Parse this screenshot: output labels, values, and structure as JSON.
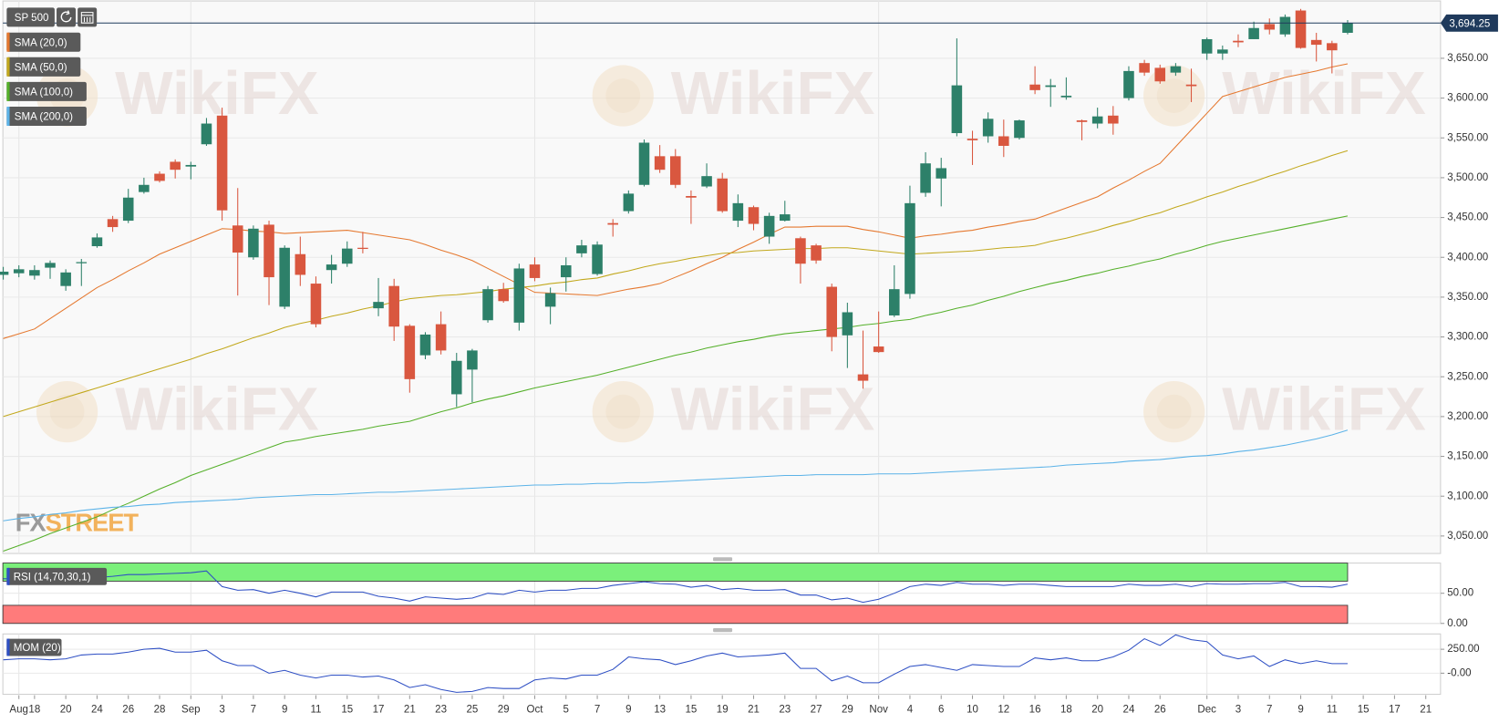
{
  "watermark": "WikiFX",
  "logo": [
    "FX",
    "STREET"
  ],
  "chart_data": [
    {
      "type": "candlestick",
      "title": "SP 500",
      "categories": [
        null,
        "Aug",
        "18",
        null,
        "20",
        null,
        "24",
        null,
        "26",
        null,
        "28",
        null,
        "Sep",
        null,
        "3",
        null,
        "7",
        null,
        "9",
        null,
        "11",
        null,
        "15",
        null,
        "17",
        null,
        "21",
        null,
        "23",
        null,
        "25",
        null,
        "29",
        null,
        "Oct",
        null,
        "5",
        null,
        "7",
        null,
        "9",
        null,
        "13",
        null,
        "15",
        null,
        "19",
        null,
        "21",
        null,
        "23",
        null,
        "27",
        null,
        "29",
        null,
        "Nov",
        null,
        "4",
        null,
        "6",
        null,
        "10",
        null,
        "12",
        null,
        "16",
        null,
        "18",
        null,
        "20",
        null,
        "24",
        null,
        "26",
        null,
        null,
        "Dec",
        null,
        "3",
        null,
        "7",
        null,
        "9",
        null,
        "11",
        null,
        "15",
        null,
        "17",
        null,
        "21"
      ],
      "open": [
        3378,
        3380,
        3377,
        3387,
        3364,
        3393,
        3414,
        3448,
        3446,
        3482,
        3505,
        3520,
        3514,
        3542,
        3578,
        3440,
        3400,
        3441,
        3338,
        3404,
        3367,
        3384,
        3392,
        3412,
        3336,
        3364,
        3314,
        3277,
        3316,
        3228,
        3259,
        3321,
        3360,
        3318,
        3391,
        3338,
        3375,
        3405,
        3379,
        3443,
        3458,
        3491,
        3527,
        3527,
        3477,
        3489,
        3499,
        3446,
        3463,
        3426,
        3446,
        3424,
        3415,
        3363,
        3302,
        3253,
        3288,
        3327,
        3354,
        3481,
        3499,
        3556,
        3549,
        3552,
        3552,
        3550,
        3617,
        3614,
        3601,
        3572,
        3568,
        3578,
        3600,
        3644,
        3638,
        3632,
        3617,
        3656,
        3656,
        3672,
        3674,
        3693,
        3680,
        3710,
        3673,
        3669,
        3682,
        null,
        null,
        null,
        null,
        null
      ],
      "high": [
        3388,
        3390,
        3390,
        3396,
        3385,
        3398,
        3430,
        3452,
        3486,
        3500,
        3508,
        3523,
        3520,
        3575,
        3588,
        3487,
        3440,
        3446,
        3415,
        3426,
        3376,
        3403,
        3420,
        3432,
        3374,
        3373,
        3316,
        3306,
        3332,
        3280,
        3285,
        3364,
        3368,
        3392,
        3400,
        3362,
        3400,
        3422,
        3420,
        3448,
        3484,
        3548,
        3541,
        3536,
        3484,
        3518,
        3506,
        3479,
        3465,
        3456,
        3471,
        3426,
        3417,
        3367,
        3343,
        3308,
        3332,
        3390,
        3490,
        3532,
        3525,
        3675,
        3559,
        3582,
        3573,
        3573,
        3640,
        3624,
        3626,
        3573,
        3588,
        3590,
        3640,
        3648,
        3642,
        3644,
        3637,
        3676,
        3666,
        3680,
        3696,
        3700,
        3705,
        3712,
        3682,
        3672,
        3698,
        null,
        null,
        null,
        null,
        null
      ],
      "low": [
        3372,
        3375,
        3372,
        3373,
        3358,
        3364,
        3412,
        3432,
        3443,
        3480,
        3494,
        3499,
        3498,
        3540,
        3446,
        3352,
        3397,
        3340,
        3335,
        3364,
        3312,
        3367,
        3388,
        3405,
        3326,
        3295,
        3230,
        3272,
        3278,
        3212,
        3218,
        3318,
        3343,
        3308,
        3370,
        3316,
        3357,
        3400,
        3377,
        3426,
        3455,
        3489,
        3506,
        3487,
        3442,
        3487,
        3456,
        3438,
        3434,
        3417,
        3445,
        3367,
        3392,
        3282,
        3261,
        3235,
        3280,
        3325,
        3348,
        3476,
        3464,
        3552,
        3516,
        3544,
        3526,
        3548,
        3605,
        3589,
        3598,
        3547,
        3562,
        3554,
        3597,
        3628,
        3618,
        3628,
        3595,
        3648,
        3648,
        3664,
        3674,
        3680,
        3677,
        3662,
        3646,
        3631,
        3680,
        null,
        null,
        null,
        null,
        null
      ],
      "close": [
        3382,
        3385,
        3384,
        3393,
        3381,
        3394,
        3425,
        3438,
        3475,
        3491,
        3496,
        3510,
        3516,
        3568,
        3459,
        3406,
        3436,
        3375,
        3412,
        3378,
        3316,
        3391,
        3411,
        3411,
        3344,
        3313,
        3247,
        3303,
        3283,
        3270,
        3283,
        3360,
        3345,
        3386,
        3374,
        3355,
        3390,
        3415,
        3416,
        3441,
        3480,
        3544,
        3510,
        3491,
        3475,
        3502,
        3458,
        3468,
        3442,
        3452,
        3454,
        3392,
        3396,
        3300,
        3331,
        3245,
        3281,
        3360,
        3468,
        3518,
        3512,
        3616,
        3547,
        3574,
        3540,
        3572,
        3610,
        3616,
        3603,
        3570,
        3577,
        3568,
        3634,
        3632,
        3621,
        3640,
        3615,
        3674,
        3661,
        3670,
        3688,
        3686,
        3702,
        3663,
        3667,
        3660,
        3694.25,
        null,
        null,
        null,
        null,
        null
      ],
      "up_color": "#2d8069",
      "down_color": "#d9573f",
      "series": [
        {
          "name": "SMA (20,0)",
          "color": "#e5782f",
          "values": [
            3298,
            3304,
            3310,
            3323,
            3336,
            3349,
            3362,
            3372,
            3383,
            3393,
            3404,
            3412,
            3420,
            3428,
            3436,
            3435,
            3433,
            3432,
            3430,
            3431,
            3432,
            3433,
            3434,
            3431,
            3428,
            3425,
            3422,
            3416,
            3409,
            3403,
            3396,
            3386,
            3376,
            3366,
            3356,
            3355,
            3354,
            3353,
            3352,
            3356,
            3360,
            3363,
            3367,
            3375,
            3383,
            3392,
            3400,
            3410,
            3419,
            3429,
            3438,
            3438,
            3439,
            3439,
            3439,
            3435,
            3432,
            3428,
            3424,
            3427,
            3429,
            3432,
            3434,
            3438,
            3441,
            3445,
            3448,
            3455,
            3462,
            3469,
            3476,
            3487,
            3497,
            3508,
            3518,
            3539,
            3560,
            3581,
            3602,
            3608,
            3614,
            3620,
            3626,
            3630,
            3634,
            3639,
            3643,
            null,
            null,
            null,
            null,
            null
          ]
        },
        {
          "name": "SMA (50,0)",
          "color": "#c2a81c",
          "values": [
            3200,
            3206,
            3212,
            3218,
            3224,
            3230,
            3236,
            3242,
            3248,
            3254,
            3260,
            3266,
            3272,
            3279,
            3285,
            3292,
            3299,
            3305,
            3312,
            3317,
            3321,
            3326,
            3330,
            3335,
            3339,
            3344,
            3348,
            3350,
            3352,
            3353,
            3355,
            3357,
            3360,
            3362,
            3364,
            3367,
            3369,
            3372,
            3374,
            3379,
            3383,
            3388,
            3392,
            3395,
            3399,
            3402,
            3405,
            3406,
            3408,
            3409,
            3410,
            3411,
            3411,
            3412,
            3412,
            3410,
            3408,
            3406,
            3404,
            3405,
            3406,
            3407,
            3408,
            3410,
            3412,
            3413,
            3415,
            3420,
            3424,
            3429,
            3434,
            3440,
            3445,
            3451,
            3456,
            3463,
            3469,
            3476,
            3482,
            3489,
            3495,
            3502,
            3508,
            3515,
            3521,
            3528,
            3534,
            null,
            null,
            null,
            null,
            null
          ]
        },
        {
          "name": "SMA (100,0)",
          "color": "#55b02a",
          "values": [
            3031,
            3038,
            3045,
            3053,
            3060,
            3067,
            3074,
            3083,
            3091,
            3100,
            3109,
            3117,
            3126,
            3133,
            3140,
            3147,
            3154,
            3161,
            3168,
            3171,
            3175,
            3178,
            3181,
            3184,
            3188,
            3191,
            3194,
            3200,
            3206,
            3211,
            3217,
            3222,
            3226,
            3231,
            3236,
            3240,
            3244,
            3248,
            3252,
            3257,
            3262,
            3267,
            3272,
            3277,
            3281,
            3286,
            3290,
            3294,
            3297,
            3301,
            3304,
            3306,
            3308,
            3310,
            3312,
            3315,
            3317,
            3320,
            3322,
            3327,
            3331,
            3336,
            3340,
            3346,
            3351,
            3357,
            3362,
            3367,
            3371,
            3376,
            3380,
            3385,
            3389,
            3394,
            3398,
            3404,
            3409,
            3415,
            3420,
            3424,
            3428,
            3432,
            3436,
            3440,
            3444,
            3448,
            3452,
            null,
            null,
            null,
            null,
            null
          ]
        },
        {
          "name": "SMA (200,0)",
          "color": "#5cb3e8",
          "values": [
            3069,
            3072,
            3074,
            3077,
            3079,
            3082,
            3084,
            3086,
            3087,
            3089,
            3090,
            3092,
            3093,
            3094,
            3095,
            3096,
            3098,
            3099,
            3100,
            3101,
            3102,
            3102,
            3103,
            3104,
            3105,
            3105,
            3106,
            3107,
            3108,
            3109,
            3110,
            3111,
            3112,
            3113,
            3114,
            3114,
            3115,
            3115,
            3116,
            3116,
            3117,
            3117,
            3118,
            3119,
            3120,
            3121,
            3122,
            3123,
            3124,
            3125,
            3126,
            3126,
            3127,
            3127,
            3127,
            3127,
            3128,
            3128,
            3128,
            3129,
            3130,
            3131,
            3132,
            3133,
            3134,
            3135,
            3136,
            3137,
            3139,
            3140,
            3141,
            3142,
            3144,
            3145,
            3146,
            3148,
            3150,
            3151,
            3153,
            3156,
            3158,
            3161,
            3164,
            3168,
            3172,
            3177,
            3183,
            null,
            null,
            null,
            null,
            null
          ]
        }
      ],
      "ylim": [
        3028,
        3722
      ],
      "yticks": [
        {
          "value": 3050,
          "label": "3,050.00"
        },
        {
          "value": 3100,
          "label": "3,100.00"
        },
        {
          "value": 3150,
          "label": "3,150.00"
        },
        {
          "value": 3200,
          "label": "3,200.00"
        },
        {
          "value": 3250,
          "label": "3,250.00"
        },
        {
          "value": 3300,
          "label": "3,300.00"
        },
        {
          "value": 3350,
          "label": "3,350.00"
        },
        {
          "value": 3400,
          "label": "3,400.00"
        },
        {
          "value": 3450,
          "label": "3,450.00"
        },
        {
          "value": 3500,
          "label": "3,500.00"
        },
        {
          "value": 3550,
          "label": "3,550.00"
        },
        {
          "value": 3600,
          "label": "3,600.00"
        },
        {
          "value": 3650,
          "label": "3,650.00"
        }
      ],
      "last_price": {
        "value": 3694.25,
        "label": "3,694.25",
        "color": "#1f3a5c"
      },
      "grid": true
    },
    {
      "type": "line",
      "title": "RSI (14,70,30,1)",
      "color": "#2e4fc4",
      "values": [
        74,
        74,
        73,
        74,
        69,
        74,
        76,
        78,
        81,
        81,
        82,
        83,
        84,
        87,
        61,
        55,
        56,
        50,
        55,
        50,
        44,
        52,
        52,
        52,
        45,
        42,
        37,
        44,
        42,
        40,
        42,
        50,
        48,
        55,
        52,
        55,
        55,
        58,
        58,
        63,
        66,
        69,
        66,
        65,
        60,
        63,
        56,
        58,
        55,
        55,
        56,
        47,
        47,
        39,
        42,
        35,
        40,
        50,
        61,
        65,
        63,
        68,
        65,
        65,
        63,
        65,
        65,
        63,
        61,
        61,
        61,
        61,
        65,
        63,
        63,
        65,
        61,
        66,
        65,
        65,
        66,
        66,
        68,
        61,
        61,
        60,
        65,
        null,
        null,
        null,
        null,
        null
      ],
      "bands": [
        {
          "from": 70,
          "to": 100,
          "color": "#7bf07b"
        },
        {
          "from": 0,
          "to": 30,
          "color": "#ff7b7b"
        }
      ],
      "ylim": [
        0,
        100
      ],
      "yticks": [
        {
          "value": 0,
          "label": "0.00"
        },
        {
          "value": 50,
          "label": "50.00"
        }
      ]
    },
    {
      "type": "line",
      "title": "MOM (20)",
      "color": "#2e4fc4",
      "values": [
        140,
        150,
        150,
        140,
        150,
        190,
        200,
        200,
        220,
        250,
        260,
        220,
        220,
        240,
        130,
        80,
        80,
        0,
        30,
        -20,
        -50,
        -20,
        -20,
        -40,
        -30,
        -70,
        -150,
        -120,
        -170,
        -200,
        -190,
        -150,
        -160,
        -160,
        -70,
        -50,
        -60,
        -20,
        -20,
        40,
        170,
        150,
        140,
        90,
        130,
        180,
        210,
        170,
        180,
        190,
        210,
        50,
        50,
        -80,
        -30,
        -100,
        -100,
        -10,
        70,
        90,
        60,
        30,
        90,
        80,
        70,
        70,
        160,
        140,
        160,
        130,
        130,
        170,
        240,
        360,
        290,
        400,
        350,
        330,
        190,
        150,
        180,
        70,
        140,
        100,
        130,
        100,
        100,
        null,
        null,
        null,
        null,
        null
      ],
      "ylim": [
        -220,
        410
      ],
      "yticks": [
        {
          "value": 0,
          "label": "-0.00"
        },
        {
          "value": 250,
          "label": "250.00"
        }
      ]
    }
  ]
}
